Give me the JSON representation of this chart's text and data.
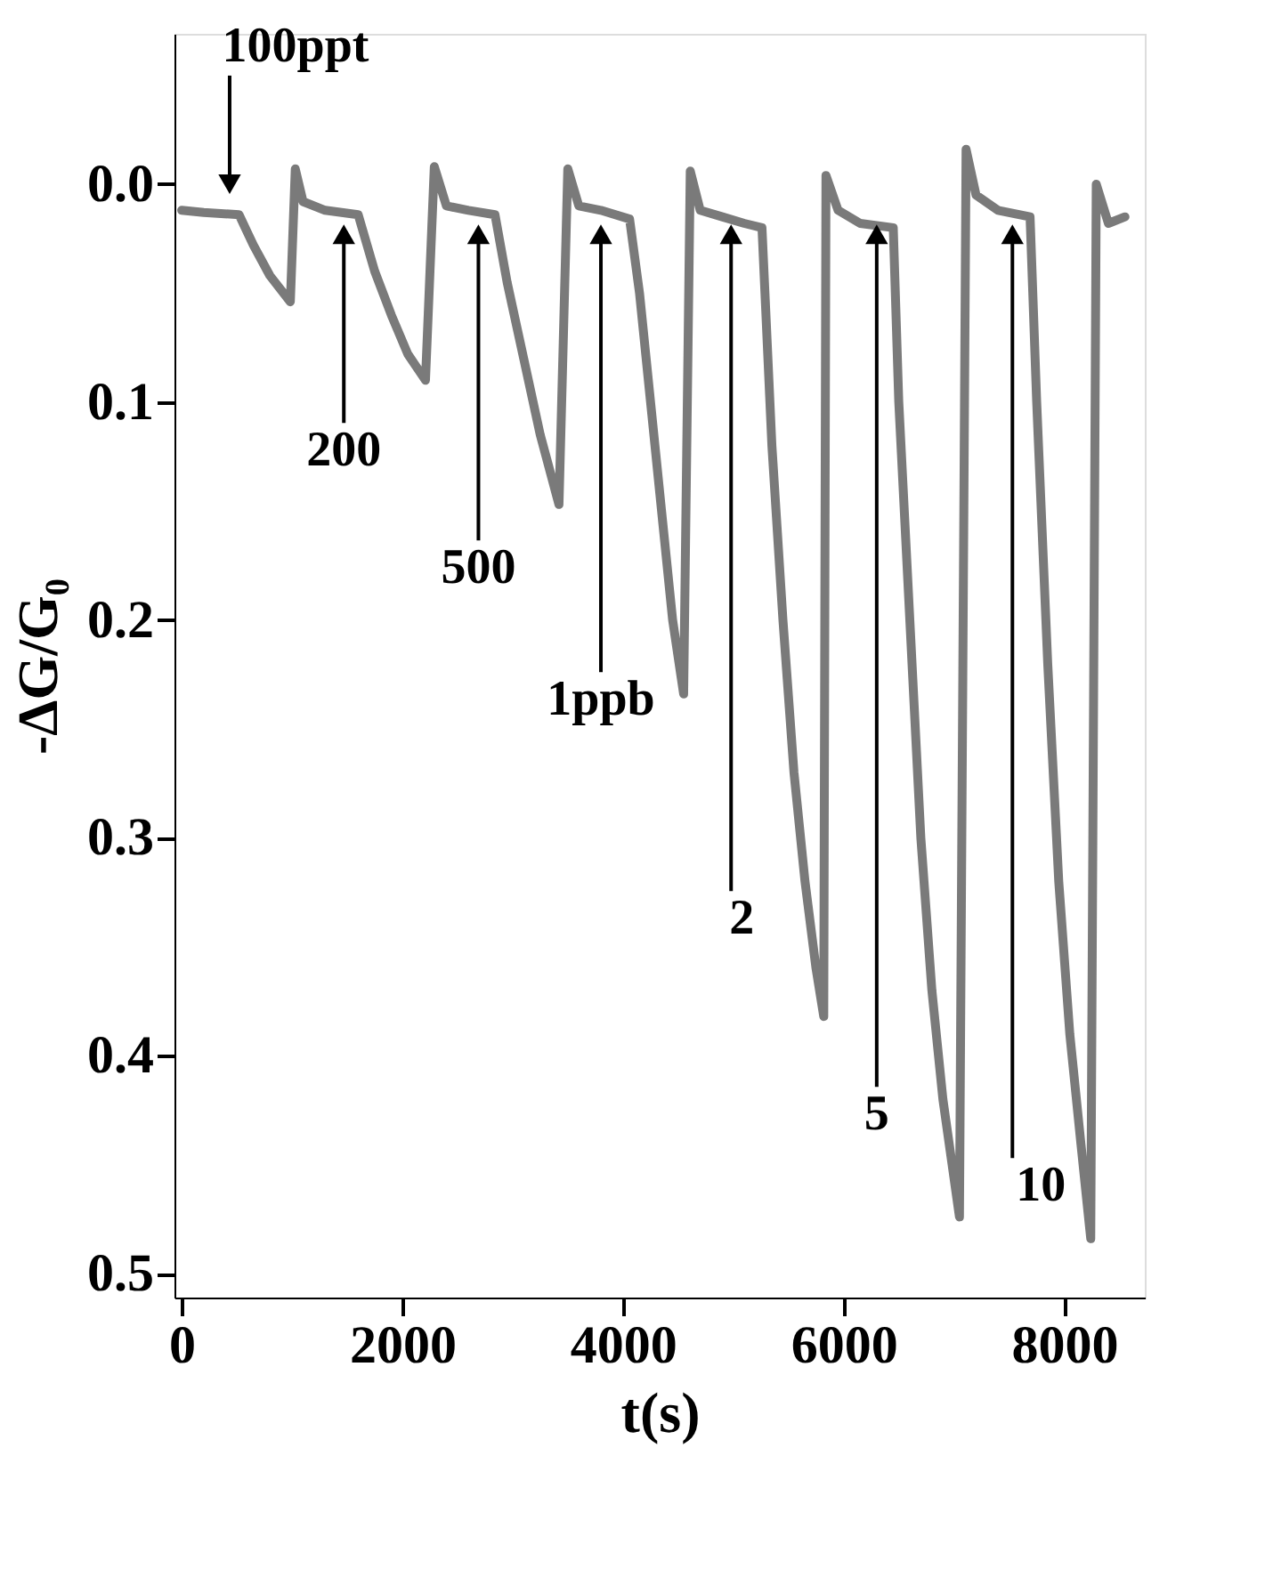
{
  "chart_data": {
    "type": "line",
    "xlabel": "t(s)",
    "ylabel": "-ΔG/G₀",
    "xlim": [
      -65,
      8730
    ],
    "xticks": [
      0,
      2000,
      4000,
      6000,
      8000
    ],
    "ylim": [
      0.511,
      -0.069
    ],
    "yticks": [
      {
        "value": 0,
        "label": "0.0"
      },
      {
        "value": 0.1,
        "label": "0.1"
      },
      {
        "value": 0.2,
        "label": "0.2"
      },
      {
        "value": 0.3,
        "label": "0.3"
      },
      {
        "value": 0.4,
        "label": "0.4"
      },
      {
        "value": 0.5,
        "label": "0.5"
      }
    ],
    "grid": false,
    "marker": "none",
    "line_style": "solid",
    "series": [
      {
        "color": "#7a7a7a",
        "x": [
          0,
          200,
          520,
          650,
          800,
          985,
          1030,
          1100,
          1300,
          1600,
          1750,
          1900,
          2050,
          2210,
          2290,
          2400,
          2600,
          2840,
          2950,
          3100,
          3250,
          3420,
          3500,
          3600,
          3800,
          4060,
          4150,
          4250,
          4350,
          4450,
          4550,
          4610,
          4700,
          4900,
          5100,
          5260,
          5350,
          5450,
          5550,
          5650,
          5750,
          5820,
          5840,
          5950,
          6150,
          6450,
          6500,
          6600,
          6700,
          6800,
          6900,
          7050,
          7110,
          7200,
          7400,
          7690,
          7750,
          7850,
          7950,
          8050,
          8150,
          8240,
          8290,
          8400,
          8550
        ],
        "values": [
          0.012,
          0.013,
          0.014,
          0.028,
          0.042,
          0.054,
          -0.007,
          0.008,
          0.012,
          0.014,
          0.04,
          0.06,
          0.078,
          0.09,
          -0.008,
          0.01,
          0.012,
          0.014,
          0.045,
          0.08,
          0.115,
          0.147,
          -0.007,
          0.01,
          0.012,
          0.016,
          0.05,
          0.1,
          0.15,
          0.2,
          0.234,
          -0.006,
          0.012,
          0.015,
          0.018,
          0.02,
          0.12,
          0.2,
          0.27,
          0.32,
          0.36,
          0.382,
          -0.004,
          0.012,
          0.018,
          0.02,
          0.1,
          0.2,
          0.3,
          0.37,
          0.42,
          0.474,
          -0.016,
          0.005,
          0.012,
          0.015,
          0.1,
          0.22,
          0.32,
          0.39,
          0.44,
          0.484,
          0.0,
          0.018,
          0.015
        ]
      }
    ],
    "annotations": [
      {
        "text": "100ppt",
        "x": 435,
        "y": 0.0
      },
      {
        "text": "200",
        "x": 1470,
        "y": 0.023
      },
      {
        "text": "500",
        "x": 2690,
        "y": 0.023
      },
      {
        "text": "1ppb",
        "x": 3800,
        "y": 0.023
      },
      {
        "text": "2",
        "x": 4980,
        "y": 0.023
      },
      {
        "text": "5",
        "x": 6300,
        "y": 0.023
      },
      {
        "text": "10",
        "x": 7530,
        "y": 0.023
      }
    ]
  }
}
